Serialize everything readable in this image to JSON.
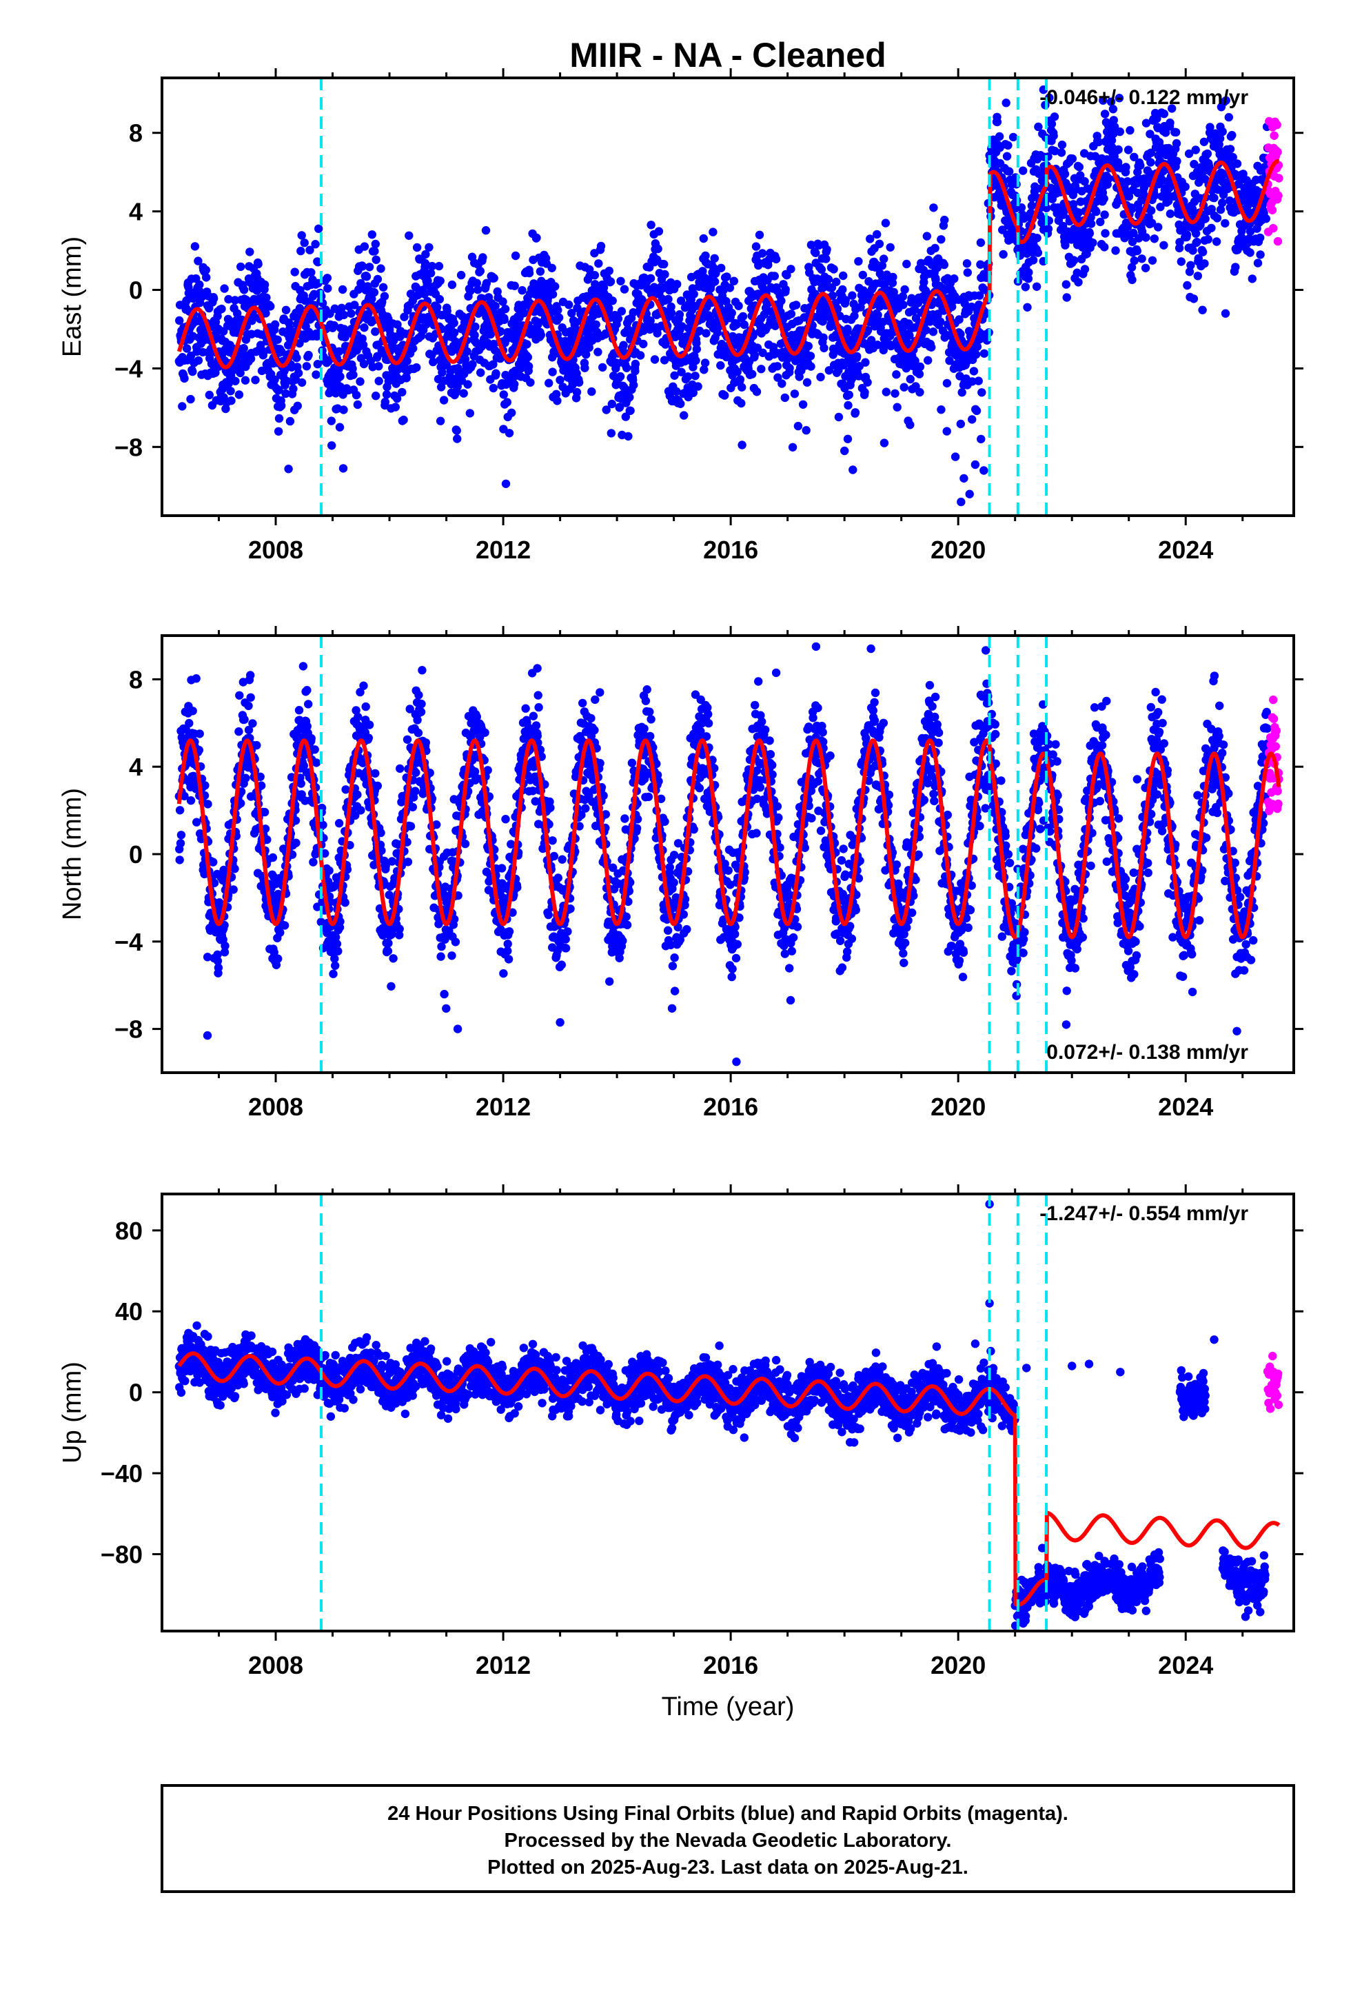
{
  "title": "MIIR  - NA - Cleaned",
  "xlabel": "Time (year)",
  "footer": {
    "line1": "24 Hour Positions Using Final Orbits (blue) and Rapid Orbits (magenta).",
    "line2": "Processed by the Nevada Geodetic Laboratory.",
    "line3": "Plotted on 2025-Aug-23. Last data on 2025-Aug-21."
  },
  "colors": {
    "final": "#0000ff",
    "rapid": "#ff00ff",
    "model": "#ff0000",
    "events": "#00e5ee",
    "frame": "#000000"
  },
  "chart_data": [
    {
      "type": "scatter",
      "component": "east",
      "ylabel": "East (mm)",
      "rate_label": "-0.046+/- 0.122 mm/yr",
      "rate_position": "top-right",
      "xlim": [
        2006.0,
        2025.9
      ],
      "ylim": [
        -11.5,
        10.8
      ],
      "x_ticks": [
        2008,
        2012,
        2016,
        2020,
        2024
      ],
      "y_ticks": [
        -8,
        -4,
        0,
        4,
        8
      ],
      "events": [
        2008.8,
        2020.55,
        2021.05,
        2021.55
      ],
      "data_span": [
        2006.3,
        2025.64
      ],
      "rapid_span": [
        2025.44,
        2025.64
      ],
      "model": {
        "description_values": "trend + annual seasonal + offsets",
        "offset_0": -2.5,
        "slope_mm_per_yr": 0.07,
        "annual_amp": 1.5,
        "annual_phase_peak": 0.62,
        "steps": [
          {
            "at": 2020.55,
            "size": 6.0
          },
          {
            "at": 2021.05,
            "size": -0.6
          },
          {
            "at": 2021.55,
            "size": 0.8
          }
        ],
        "scatter": 1.6
      },
      "outliers": [
        {
          "x": 2019.8,
          "y": -7.2
        },
        {
          "x": 2019.95,
          "y": -8.5
        },
        {
          "x": 2020.1,
          "y": -9.6
        },
        {
          "x": 2020.2,
          "y": -10.4
        },
        {
          "x": 2020.3,
          "y": -8.9
        },
        {
          "x": 2020.4,
          "y": -7.6
        },
        {
          "x": 2019.7,
          "y": -6.1
        },
        {
          "x": 2020.05,
          "y": -10.8
        },
        {
          "x": 2020.45,
          "y": -9.2
        },
        {
          "x": 2018.0,
          "y": -8.2
        },
        {
          "x": 2018.7,
          "y": -7.8
        },
        {
          "x": 2016.2,
          "y": -7.9
        },
        {
          "x": 2013.9,
          "y": -7.3
        },
        {
          "x": 2021.5,
          "y": 10.2
        },
        {
          "x": 2024.7,
          "y": -1.2
        }
      ]
    },
    {
      "type": "scatter",
      "component": "north",
      "ylabel": "North (mm)",
      "rate_label": "0.072+/- 0.138 mm/yr",
      "rate_position": "bottom-right",
      "xlim": [
        2006.0,
        2025.9
      ],
      "ylim": [
        -10,
        10
      ],
      "x_ticks": [
        2008,
        2012,
        2016,
        2020,
        2024
      ],
      "y_ticks": [
        -8,
        -4,
        0,
        4,
        8
      ],
      "events": [
        2008.8,
        2020.55,
        2021.05,
        2021.55
      ],
      "data_span": [
        2006.3,
        2025.64
      ],
      "rapid_span": [
        2025.44,
        2025.64
      ],
      "model": {
        "offset_0": 1.0,
        "slope_mm_per_yr": 0.0,
        "annual_amp": 4.2,
        "annual_phase_peak": 0.5,
        "steps": [
          {
            "at": 2020.55,
            "size": -0.6
          }
        ],
        "scatter": 1.3
      },
      "outliers": [
        {
          "x": 2006.8,
          "y": -8.3
        },
        {
          "x": 2011.2,
          "y": -8.0
        },
        {
          "x": 2013.0,
          "y": -7.7
        },
        {
          "x": 2016.1,
          "y": -9.5
        },
        {
          "x": 2017.5,
          "y": 9.5
        },
        {
          "x": 2012.6,
          "y": 8.5
        },
        {
          "x": 2021.9,
          "y": -7.8
        },
        {
          "x": 2024.9,
          "y": -8.1
        },
        {
          "x": 2016.8,
          "y": 8.3
        },
        {
          "x": 2013.7,
          "y": 7.4
        }
      ]
    },
    {
      "type": "scatter",
      "component": "up",
      "ylabel": "Up (mm)",
      "rate_label": "-1.247+/- 0.554 mm/yr",
      "rate_position": "top-right",
      "xlim": [
        2006.0,
        2025.9
      ],
      "ylim": [
        -118,
        98
      ],
      "x_ticks": [
        2008,
        2012,
        2016,
        2020,
        2024
      ],
      "y_ticks": [
        -80,
        -40,
        0,
        40,
        80
      ],
      "events": [
        2008.8,
        2020.55,
        2021.05,
        2021.55
      ],
      "data_segments": [
        {
          "from": 2006.3,
          "to": 2021.0,
          "center_start": 13,
          "center_end": -6,
          "annual_amp": 6,
          "scatter": 6
        },
        {
          "from": 2021.0,
          "to": 2023.55,
          "center_start": -100,
          "center_end": -92,
          "annual_amp": 4,
          "scatter": 5
        },
        {
          "from": 2023.9,
          "to": 2024.35,
          "center_start": 0,
          "center_end": 0,
          "annual_amp": 3,
          "scatter": 5
        },
        {
          "from": 2024.65,
          "to": 2025.4,
          "center_start": -88,
          "center_end": -95,
          "annual_amp": 4,
          "scatter": 5
        }
      ],
      "rapid_span": [
        2025.44,
        2025.64
      ],
      "rapid_center": 3,
      "model": {
        "offset_0": 13,
        "slope_mm_per_yr": -1.25,
        "annual_amp": 6.5,
        "annual_phase_peak": 0.55,
        "steps": [
          {
            "at": 2021.0,
            "size": -93
          },
          {
            "at": 2021.55,
            "size": 33
          }
        ]
      },
      "outliers": [
        {
          "x": 2020.55,
          "y": 93
        },
        {
          "x": 2020.55,
          "y": 44
        },
        {
          "x": 2022.0,
          "y": 13
        },
        {
          "x": 2022.3,
          "y": 14
        },
        {
          "x": 2022.85,
          "y": 10
        },
        {
          "x": 2024.5,
          "y": 26
        },
        {
          "x": 2021.2,
          "y": 12
        },
        {
          "x": 2020.3,
          "y": 24
        },
        {
          "x": 2015.8,
          "y": 23
        }
      ]
    }
  ]
}
